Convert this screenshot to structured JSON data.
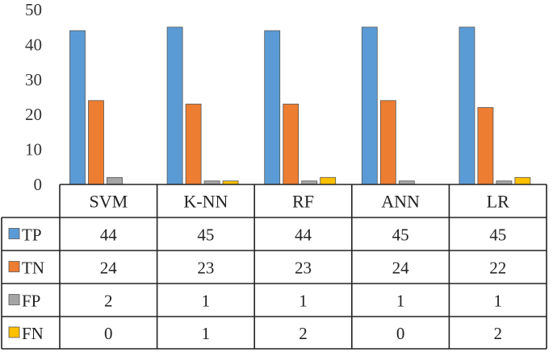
{
  "chart_data": {
    "type": "bar",
    "categories": [
      "SVM",
      "K-NN",
      "RF",
      "ANN",
      "LR"
    ],
    "series": [
      {
        "name": "TP",
        "values": [
          44,
          45,
          44,
          45,
          45
        ],
        "color": "#5B9BD5"
      },
      {
        "name": "TN",
        "values": [
          24,
          23,
          23,
          24,
          22
        ],
        "color": "#ED7D31"
      },
      {
        "name": "FP",
        "values": [
          2,
          1,
          1,
          1,
          1
        ],
        "color": "#A5A5A5"
      },
      {
        "name": "FN",
        "values": [
          0,
          1,
          2,
          0,
          2
        ],
        "color": "#FFC000"
      }
    ],
    "yticks": [
      0,
      10,
      20,
      30,
      40,
      50
    ],
    "ylim": [
      0,
      50
    ],
    "grid": false,
    "legend": "data-table"
  }
}
